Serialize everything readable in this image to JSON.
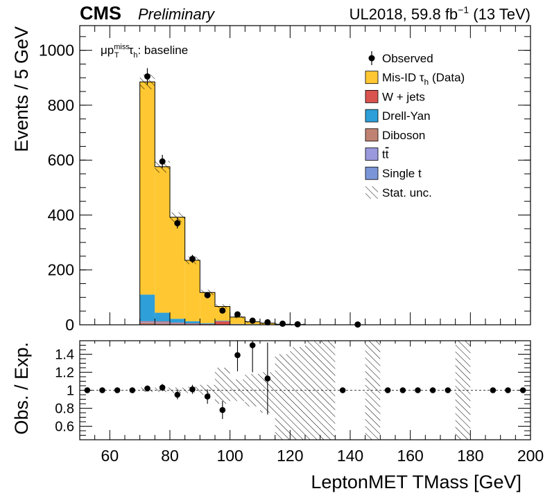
{
  "header": {
    "experiment": "CMS",
    "status": "Preliminary",
    "lumi_prefix": "UL2018, 59.8 fb",
    "lumi_exponent": "−1",
    "lumi_suffix": " (13 TeV)"
  },
  "annotation": {
    "mu": "μp",
    "sup": "miss",
    "sub": "T",
    "tau": "τ",
    "tau_sub": "h",
    "rest": ": baseline"
  },
  "chart_data": [
    {
      "type": "bar",
      "stacked": true,
      "ylabel": "Events / 5 GeV",
      "xlim": [
        50,
        200
      ],
      "ylim": [
        0,
        1090
      ],
      "yticks": [
        "0",
        "200",
        "400",
        "600",
        "800",
        "1000"
      ],
      "bin_edges": [
        70,
        75,
        80,
        85,
        90,
        95,
        100,
        105,
        110,
        115,
        120,
        125
      ],
      "series": [
        {
          "name": "Diboson",
          "color": "#c08272",
          "values": [
            8,
            6,
            4,
            2,
            1,
            1,
            0,
            0,
            0,
            0,
            0
          ]
        },
        {
          "name": "tt",
          "color": "#9a99dd",
          "values": [
            2,
            2,
            1,
            1,
            0,
            0,
            0,
            0,
            0,
            0,
            0
          ]
        },
        {
          "name": "Single t",
          "color": "#7a96d8",
          "values": [
            1,
            1,
            1,
            0,
            0,
            0,
            0,
            0,
            0,
            0,
            0
          ]
        },
        {
          "name": "W + jets",
          "color": "#d9534f",
          "values": [
            2,
            3,
            2,
            2,
            2,
            12,
            2,
            1,
            0,
            0,
            0
          ]
        },
        {
          "name": "Drell-Yan",
          "color": "#2e9fd8",
          "values": [
            97,
            32,
            14,
            8,
            3,
            2,
            1,
            1,
            0,
            0,
            0
          ]
        },
        {
          "name": "Mis-ID  τh (Data)",
          "color": "#ffc832",
          "values": [
            775,
            532,
            370,
            222,
            112,
            52,
            25,
            9,
            6,
            2,
            1
          ]
        }
      ],
      "observed": {
        "name": "Observed",
        "x": [
          72.5,
          77.5,
          82.5,
          87.5,
          92.5,
          97.5,
          102.5,
          107.5,
          112.5,
          117.5,
          122.5,
          142.5
        ],
        "y": [
          905,
          595,
          370,
          240,
          108,
          52,
          38,
          15,
          9,
          4,
          2,
          1
        ],
        "err": [
          30,
          24,
          19,
          15,
          10,
          7,
          6,
          4,
          3,
          2,
          1.4,
          1
        ]
      },
      "legend": {
        "placement": "top-right",
        "entries": [
          "Observed",
          "Mis-ID  τh (Data)",
          "W + jets",
          "Drell-Yan",
          "Diboson",
          "tt",
          "Single t",
          "Stat. unc."
        ]
      }
    },
    {
      "type": "scatter",
      "xlabel": "LeptonMET TMass [GeV]",
      "ylabel": "Obs. / Exp.",
      "xlim": [
        50,
        200
      ],
      "ylim": [
        0.45,
        1.55
      ],
      "yticks": [
        "0.6",
        "0.8",
        "1",
        "1.2",
        "1.4"
      ],
      "xticks": [
        "60",
        "80",
        "100",
        "120",
        "140",
        "160",
        "180",
        "200"
      ],
      "reference_line": 1,
      "x": [
        52.5,
        57.5,
        62.5,
        67.5,
        72.5,
        77.5,
        82.5,
        87.5,
        92.5,
        97.5,
        102.5,
        107.5,
        112.5,
        137.5,
        152.5,
        157.5,
        162.5,
        167.5,
        172.5,
        187.5,
        192.5,
        197.5
      ],
      "y": [
        1.0,
        1.0,
        1.0,
        1.0,
        1.02,
        1.03,
        0.95,
        1.01,
        0.93,
        0.78,
        1.39,
        1.5,
        1.13,
        1.0,
        1.0,
        1.0,
        1.0,
        1.0,
        1.0,
        1.0,
        1.0,
        1.0
      ],
      "err": [
        0,
        0,
        0,
        0,
        0.03,
        0.04,
        0.05,
        0.05,
        0.08,
        0.1,
        0.18,
        0.3,
        0.4,
        0,
        0,
        0,
        0,
        0,
        0,
        0,
        0,
        0
      ],
      "unc_bands": [
        {
          "x0": 70,
          "x1": 75,
          "lo": 0.98,
          "hi": 1.03
        },
        {
          "x0": 75,
          "x1": 80,
          "lo": 0.98,
          "hi": 1.03
        },
        {
          "x0": 80,
          "x1": 85,
          "lo": 0.97,
          "hi": 1.03
        },
        {
          "x0": 85,
          "x1": 90,
          "lo": 0.97,
          "hi": 1.04
        },
        {
          "x0": 90,
          "x1": 95,
          "lo": 0.95,
          "hi": 1.06
        },
        {
          "x0": 95,
          "x1": 100,
          "lo": 0.85,
          "hi": 1.25
        },
        {
          "x0": 100,
          "x1": 105,
          "lo": 0.88,
          "hi": 1.12
        },
        {
          "x0": 105,
          "x1": 110,
          "lo": 0.82,
          "hi": 1.18
        },
        {
          "x0": 110,
          "x1": 115,
          "lo": 0.75,
          "hi": 1.2
        },
        {
          "x0": 115,
          "x1": 120,
          "lo": 0.45,
          "hi": 1.4
        },
        {
          "x0": 120,
          "x1": 125,
          "lo": 0.45,
          "hi": 1.48
        },
        {
          "x0": 125,
          "x1": 135,
          "lo": 0.45,
          "hi": 1.55
        },
        {
          "x0": 145,
          "x1": 150,
          "lo": 0.45,
          "hi": 1.55
        },
        {
          "x0": 175,
          "x1": 180,
          "lo": 0.45,
          "hi": 1.55
        }
      ]
    }
  ]
}
